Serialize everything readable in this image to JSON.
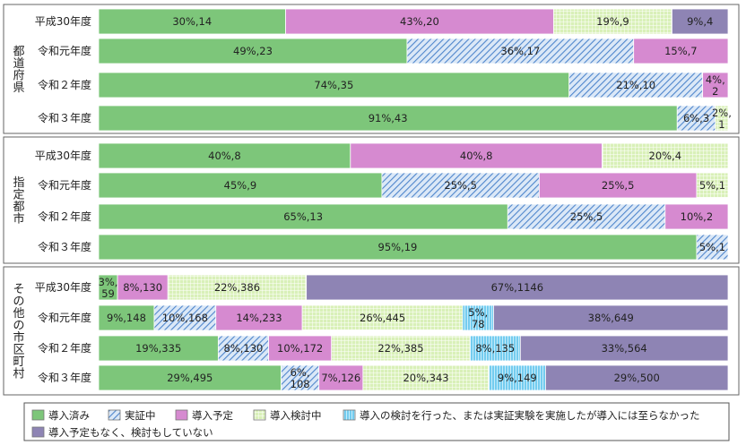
{
  "chart_data": {
    "type": "bar",
    "orientation": "horizontal",
    "stacked": true,
    "normalized": true,
    "label_format": "percent%,count",
    "series": [
      {
        "key": "s0",
        "name": "導入済み",
        "color": "#7dc67a",
        "pattern": "solid"
      },
      {
        "key": "s1",
        "name": "実証中",
        "color": "#6fa0d8",
        "pattern": "hatch"
      },
      {
        "key": "s2",
        "name": "導入予定",
        "color": "#d68ad0",
        "pattern": "solid"
      },
      {
        "key": "s3",
        "name": "導入検討中",
        "color": "#c8ea9b",
        "pattern": "grid"
      },
      {
        "key": "s4",
        "name": "導入の検討を行った、または実証実験を実施したが導入には至らなかった",
        "color": "#7fd3f1",
        "pattern": "vlines"
      },
      {
        "key": "s5",
        "name": "導入予定もなく、検討もしていない",
        "color": "#8e84b4",
        "pattern": "solid"
      }
    ],
    "groups": [
      {
        "name": "都道府県",
        "rows": [
          {
            "label": "平成30年度",
            "segments": [
              {
                "series": "s0",
                "percent": 30,
                "count": 14,
                "text": "30%,14"
              },
              {
                "series": "s2",
                "percent": 43,
                "count": 20,
                "text": "43%,20"
              },
              {
                "series": "s3",
                "percent": 19,
                "count": 9,
                "text": "19%,9"
              },
              {
                "series": "s5",
                "percent": 9,
                "count": 4,
                "text": "9%,4"
              }
            ]
          },
          {
            "label": "令和元年度",
            "segments": [
              {
                "series": "s0",
                "percent": 49,
                "count": 23,
                "text": "49%,23"
              },
              {
                "series": "s1",
                "percent": 36,
                "count": 17,
                "text": "36%,17"
              },
              {
                "series": "s2",
                "percent": 15,
                "count": 7,
                "text": "15%,7"
              }
            ]
          },
          {
            "label": "令和２年度",
            "segments": [
              {
                "series": "s0",
                "percent": 74,
                "count": 35,
                "text": "74%,35"
              },
              {
                "series": "s1",
                "percent": 21,
                "count": 10,
                "text": "21%,10"
              },
              {
                "series": "s2",
                "percent": 4,
                "count": 2,
                "text": "4%,2"
              }
            ]
          },
          {
            "label": "令和３年度",
            "segments": [
              {
                "series": "s0",
                "percent": 91,
                "count": 43,
                "text": "91%,43"
              },
              {
                "series": "s1",
                "percent": 6,
                "count": 3,
                "text": "6%,3"
              },
              {
                "series": "s3",
                "percent": 2,
                "count": 1,
                "text": "2%,1"
              }
            ]
          }
        ]
      },
      {
        "name": "指定都市",
        "rows": [
          {
            "label": "平成30年度",
            "segments": [
              {
                "series": "s0",
                "percent": 40,
                "count": 8,
                "text": "40%,8"
              },
              {
                "series": "s2",
                "percent": 40,
                "count": 8,
                "text": "40%,8"
              },
              {
                "series": "s3",
                "percent": 20,
                "count": 4,
                "text": "20%,4"
              }
            ]
          },
          {
            "label": "令和元年度",
            "segments": [
              {
                "series": "s0",
                "percent": 45,
                "count": 9,
                "text": "45%,9"
              },
              {
                "series": "s1",
                "percent": 25,
                "count": 5,
                "text": "25%,5"
              },
              {
                "series": "s2",
                "percent": 25,
                "count": 5,
                "text": "25%,5"
              },
              {
                "series": "s3",
                "percent": 5,
                "count": 1,
                "text": "5%,1"
              }
            ]
          },
          {
            "label": "令和２年度",
            "segments": [
              {
                "series": "s0",
                "percent": 65,
                "count": 13,
                "text": "65%,13"
              },
              {
                "series": "s1",
                "percent": 25,
                "count": 5,
                "text": "25%,5"
              },
              {
                "series": "s2",
                "percent": 10,
                "count": 2,
                "text": "10%,2"
              }
            ]
          },
          {
            "label": "令和３年度",
            "segments": [
              {
                "series": "s0",
                "percent": 95,
                "count": 19,
                "text": "95%,19"
              },
              {
                "series": "s1",
                "percent": 5,
                "count": 1,
                "text": "5%,1"
              }
            ]
          }
        ]
      },
      {
        "name": "その他の市区町村",
        "rows": [
          {
            "label": "平成30年度",
            "segments": [
              {
                "series": "s0",
                "percent": 3,
                "count": 59,
                "text": "3%,59"
              },
              {
                "series": "s2",
                "percent": 8,
                "count": 130,
                "text": "8%,130"
              },
              {
                "series": "s3",
                "percent": 22,
                "count": 386,
                "text": "22%,386"
              },
              {
                "series": "s5",
                "percent": 67,
                "count": 1146,
                "text": "67%,1146"
              }
            ]
          },
          {
            "label": "令和元年度",
            "segments": [
              {
                "series": "s0",
                "percent": 9,
                "count": 148,
                "text": "9%,148"
              },
              {
                "series": "s1",
                "percent": 10,
                "count": 168,
                "text": "10%,168"
              },
              {
                "series": "s2",
                "percent": 14,
                "count": 233,
                "text": "14%,233"
              },
              {
                "series": "s3",
                "percent": 26,
                "count": 445,
                "text": "26%,445"
              },
              {
                "series": "s4",
                "percent": 5,
                "count": 78,
                "text": "5%,78"
              },
              {
                "series": "s5",
                "percent": 38,
                "count": 649,
                "text": "38%,649"
              }
            ]
          },
          {
            "label": "令和２年度",
            "segments": [
              {
                "series": "s0",
                "percent": 19,
                "count": 335,
                "text": "19%,335"
              },
              {
                "series": "s1",
                "percent": 8,
                "count": 130,
                "text": "8%,130"
              },
              {
                "series": "s2",
                "percent": 10,
                "count": 172,
                "text": "10%,172"
              },
              {
                "series": "s3",
                "percent": 22,
                "count": 385,
                "text": "22%,385"
              },
              {
                "series": "s4",
                "percent": 8,
                "count": 135,
                "text": "8%,135"
              },
              {
                "series": "s5",
                "percent": 33,
                "count": 564,
                "text": "33%,564"
              }
            ]
          },
          {
            "label": "令和３年度",
            "segments": [
              {
                "series": "s0",
                "percent": 29,
                "count": 495,
                "text": "29%,495"
              },
              {
                "series": "s1",
                "percent": 6,
                "count": 108,
                "text": "6%,108"
              },
              {
                "series": "s2",
                "percent": 7,
                "count": 126,
                "text": "7%,126"
              },
              {
                "series": "s3",
                "percent": 20,
                "count": 343,
                "text": "20%,343"
              },
              {
                "series": "s4",
                "percent": 9,
                "count": 149,
                "text": "9%,149"
              },
              {
                "series": "s5",
                "percent": 29,
                "count": 500,
                "text": "29%,500"
              }
            ]
          }
        ]
      }
    ],
    "legend_position": "bottom"
  }
}
